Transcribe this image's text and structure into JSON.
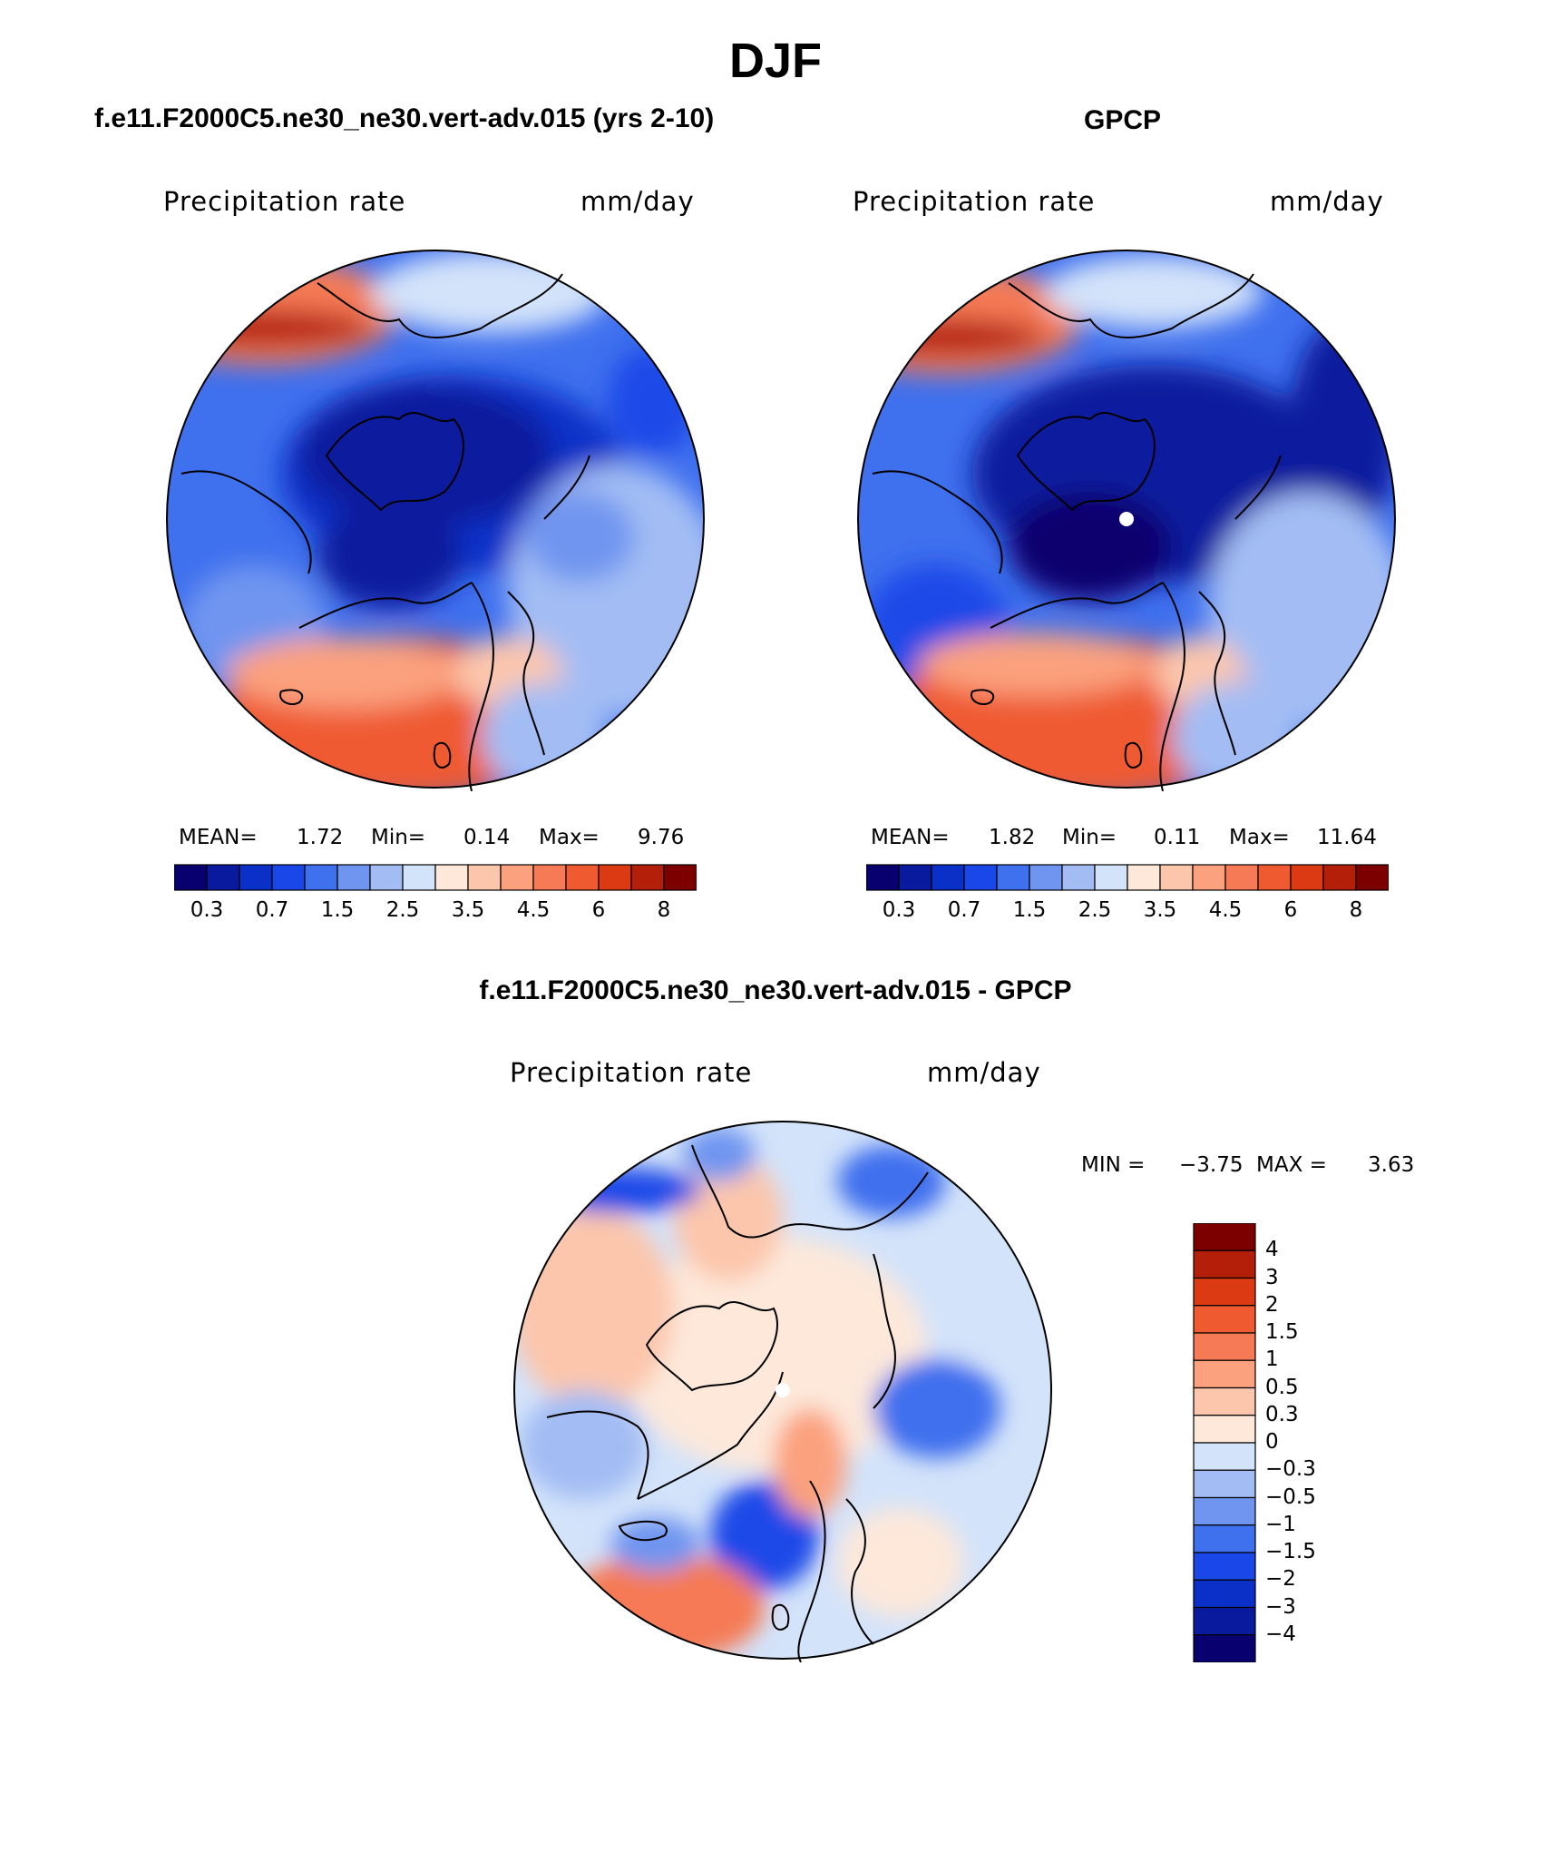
{
  "figure": {
    "season": "DJF"
  },
  "panels": {
    "model": {
      "title": "f.e11.F2000C5.ne30_ne30.vert-adv.015 (yrs 2-10)",
      "variable": "Precipitation rate",
      "units": "mm/day",
      "mean_label": "MEAN=",
      "mean_value": "1.72",
      "min_label": "Min=",
      "min_value": "0.14",
      "max_label": "Max=",
      "max_value": "9.76"
    },
    "obs": {
      "title": "GPCP",
      "variable": "Precipitation rate",
      "units": "mm/day",
      "mean_label": "MEAN=",
      "mean_value": "1.82",
      "min_label": "Min=",
      "min_value": "0.11",
      "max_label": "Max=",
      "max_value": "11.64"
    },
    "diff": {
      "title": "f.e11.F2000C5.ne30_ne30.vert-adv.015 - GPCP",
      "variable": "Precipitation rate",
      "units": "mm/day",
      "min_label": "MIN =",
      "min_value": "−3.75",
      "max_label": "MAX =",
      "max_value": "3.63"
    }
  },
  "colorbars": {
    "precip": {
      "colors": [
        "#08006e",
        "#0a1a9e",
        "#0b30c8",
        "#1a48e8",
        "#3f70ee",
        "#6f95f0",
        "#a3bdf4",
        "#d3e3fa",
        "#fde8da",
        "#fcc6ac",
        "#fba17e",
        "#f57a55",
        "#ef5a30",
        "#dc3a12",
        "#b41f0a",
        "#7d0000"
      ],
      "labels": [
        "0.3",
        "0.7",
        "1.5",
        "2.5",
        "3.5",
        "4.5",
        "6",
        "8"
      ],
      "label_after_box": [
        1,
        3,
        5,
        7,
        9,
        11,
        13,
        15
      ]
    },
    "diff": {
      "colors_top_to_bottom": [
        "#7d0000",
        "#b41f0a",
        "#dc3a12",
        "#ef5a30",
        "#f57a55",
        "#fba17e",
        "#fcc6ac",
        "#fde8da",
        "#d3e3fa",
        "#a3bdf4",
        "#6f95f0",
        "#3f70ee",
        "#1a48e8",
        "#0b30c8",
        "#0a1a9e",
        "#08006e"
      ],
      "labels": [
        "4",
        "3",
        "2",
        "1.5",
        "1",
        "0.5",
        "0.3",
        "0",
        "−0.3",
        "−0.5",
        "−1",
        "−1.5",
        "−2",
        "−3",
        "−4"
      ]
    }
  },
  "colors": {
    "land_outline": "#000000",
    "background": "#ffffff"
  }
}
